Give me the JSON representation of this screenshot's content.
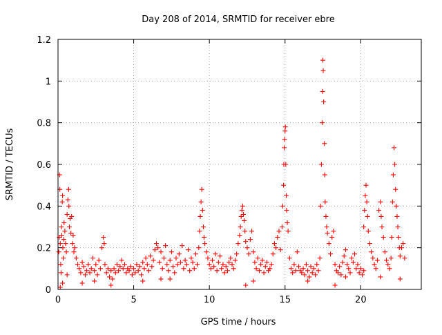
{
  "chart_data": {
    "type": "scatter",
    "title": "Day 208 of 2014, SRMTID for receiver ebre",
    "xlabel": "GPS time / hours",
    "ylabel": "SRMTID / TECUs",
    "xlim": [
      0,
      24
    ],
    "ylim": [
      0,
      1.2
    ],
    "x_ticks": [
      0,
      5,
      10,
      15,
      20
    ],
    "x_tick_labels": [
      "0",
      "5",
      "10",
      "15",
      "20"
    ],
    "y_ticks": [
      0,
      0.2,
      0.4,
      0.6,
      0.8,
      1.0,
      1.2
    ],
    "y_tick_labels": [
      "0",
      "0.2",
      "0.4",
      "0.6",
      "0.8",
      "1",
      "1.2"
    ],
    "grid": true,
    "marker": "+",
    "series": [
      {
        "name": "SRMTID",
        "color": "#ff0000",
        "points": [
          [
            0.05,
            0.18
          ],
          [
            0.08,
            0.25
          ],
          [
            0.1,
            0.55
          ],
          [
            0.12,
            0.48
          ],
          [
            0.15,
            0.22
          ],
          [
            0.18,
            0.12
          ],
          [
            0.2,
            0.08
          ],
          [
            0.22,
            0.3
          ],
          [
            0.25,
            0.26
          ],
          [
            0.28,
            0.42
          ],
          [
            0.3,
            0.45
          ],
          [
            0.32,
            0.2
          ],
          [
            0.35,
            0.15
          ],
          [
            0.38,
            0.24
          ],
          [
            0.4,
            0.32
          ],
          [
            0.45,
            0.28
          ],
          [
            0.5,
            0.22
          ],
          [
            0.55,
            0.18
          ],
          [
            0.6,
            0.36
          ],
          [
            0.65,
            0.43
          ],
          [
            0.7,
            0.48
          ],
          [
            0.72,
            0.4
          ],
          [
            0.75,
            0.3
          ],
          [
            0.8,
            0.34
          ],
          [
            0.85,
            0.27
          ],
          [
            0.9,
            0.35
          ],
          [
            0.95,
            0.22
          ],
          [
            1.0,
            0.26
          ],
          [
            1.05,
            0.18
          ],
          [
            1.1,
            0.2
          ],
          [
            1.2,
            0.15
          ],
          [
            1.3,
            0.12
          ],
          [
            0.3,
            0.03
          ],
          [
            0.15,
            0.01
          ],
          [
            0.6,
            0.07
          ],
          [
            1.4,
            0.1
          ],
          [
            1.5,
            0.08
          ],
          [
            1.6,
            0.13
          ],
          [
            1.7,
            0.11
          ],
          [
            1.8,
            0.07
          ],
          [
            1.9,
            0.09
          ],
          [
            2.0,
            0.12
          ],
          [
            2.1,
            0.08
          ],
          [
            2.2,
            0.1
          ],
          [
            2.3,
            0.15
          ],
          [
            2.4,
            0.09
          ],
          [
            2.5,
            0.12
          ],
          [
            2.6,
            0.07
          ],
          [
            2.7,
            0.14
          ],
          [
            2.8,
            0.1
          ],
          [
            2.9,
            0.2
          ],
          [
            3.0,
            0.25
          ],
          [
            3.05,
            0.22
          ],
          [
            3.1,
            0.12
          ],
          [
            3.2,
            0.08
          ],
          [
            3.3,
            0.1
          ],
          [
            3.4,
            0.06
          ],
          [
            3.5,
            0.09
          ],
          [
            3.6,
            0.05
          ],
          [
            3.7,
            0.1
          ],
          [
            3.8,
            0.08
          ],
          [
            3.9,
            0.12
          ],
          [
            4.0,
            0.09
          ],
          [
            4.1,
            0.11
          ],
          [
            4.2,
            0.14
          ],
          [
            4.3,
            0.1
          ],
          [
            4.4,
            0.12
          ],
          [
            4.5,
            0.08
          ],
          [
            4.6,
            0.1
          ],
          [
            4.7,
            0.09
          ],
          [
            4.8,
            0.11
          ],
          [
            4.9,
            0.07
          ],
          [
            1.6,
            0.03
          ],
          [
            2.4,
            0.04
          ],
          [
            3.5,
            0.02
          ],
          [
            5.0,
            0.1
          ],
          [
            5.1,
            0.08
          ],
          [
            5.2,
            0.12
          ],
          [
            5.3,
            0.09
          ],
          [
            5.4,
            0.11
          ],
          [
            5.5,
            0.07
          ],
          [
            5.6,
            0.13
          ],
          [
            5.7,
            0.1
          ],
          [
            5.8,
            0.15
          ],
          [
            5.9,
            0.12
          ],
          [
            6.0,
            0.09
          ],
          [
            6.1,
            0.16
          ],
          [
            6.2,
            0.11
          ],
          [
            6.3,
            0.14
          ],
          [
            6.4,
            0.19
          ],
          [
            6.5,
            0.22
          ],
          [
            6.6,
            0.2
          ],
          [
            6.7,
            0.13
          ],
          [
            6.8,
            0.18
          ],
          [
            6.9,
            0.1
          ],
          [
            7.0,
            0.15
          ],
          [
            7.1,
            0.21
          ],
          [
            7.2,
            0.12
          ],
          [
            7.3,
            0.09
          ],
          [
            7.4,
            0.14
          ],
          [
            7.5,
            0.18
          ],
          [
            7.6,
            0.11
          ],
          [
            7.7,
            0.08
          ],
          [
            7.8,
            0.15
          ],
          [
            7.9,
            0.12
          ],
          [
            8.0,
            0.17
          ],
          [
            8.1,
            0.13
          ],
          [
            8.2,
            0.21
          ],
          [
            8.3,
            0.1
          ],
          [
            8.4,
            0.14
          ],
          [
            8.5,
            0.12
          ],
          [
            8.6,
            0.19
          ],
          [
            8.7,
            0.09
          ],
          [
            8.8,
            0.15
          ],
          [
            8.9,
            0.13
          ],
          [
            9.0,
            0.1
          ],
          [
            9.1,
            0.17
          ],
          [
            9.2,
            0.12
          ],
          [
            5.6,
            0.04
          ],
          [
            6.8,
            0.05
          ],
          [
            7.4,
            0.05
          ],
          [
            9.3,
            0.2
          ],
          [
            9.35,
            0.28
          ],
          [
            9.4,
            0.35
          ],
          [
            9.45,
            0.42
          ],
          [
            9.5,
            0.48
          ],
          [
            9.55,
            0.38
          ],
          [
            9.6,
            0.3
          ],
          [
            9.65,
            0.25
          ],
          [
            9.7,
            0.22
          ],
          [
            9.8,
            0.18
          ],
          [
            9.9,
            0.15
          ],
          [
            10.0,
            0.12
          ],
          [
            10.1,
            0.1
          ],
          [
            10.2,
            0.14
          ],
          [
            10.3,
            0.11
          ],
          [
            10.4,
            0.17
          ],
          [
            10.5,
            0.09
          ],
          [
            10.6,
            0.13
          ],
          [
            10.7,
            0.16
          ],
          [
            10.8,
            0.1
          ],
          [
            10.9,
            0.12
          ],
          [
            11.0,
            0.08
          ],
          [
            11.1,
            0.11
          ],
          [
            11.2,
            0.09
          ],
          [
            11.3,
            0.13
          ],
          [
            11.4,
            0.15
          ],
          [
            11.5,
            0.12
          ],
          [
            11.6,
            0.1
          ],
          [
            11.7,
            0.14
          ],
          [
            11.8,
            0.17
          ],
          [
            11.9,
            0.22
          ],
          [
            12.0,
            0.26
          ],
          [
            12.05,
            0.3
          ],
          [
            12.1,
            0.35
          ],
          [
            12.15,
            0.38
          ],
          [
            12.2,
            0.4
          ],
          [
            12.25,
            0.36
          ],
          [
            12.3,
            0.33
          ],
          [
            12.35,
            0.28
          ],
          [
            12.4,
            0.23
          ],
          [
            12.5,
            0.2
          ],
          [
            12.6,
            0.17
          ],
          [
            12.7,
            0.24
          ],
          [
            12.8,
            0.28
          ],
          [
            12.9,
            0.18
          ],
          [
            13.0,
            0.13
          ],
          [
            13.1,
            0.1
          ],
          [
            13.2,
            0.15
          ],
          [
            13.3,
            0.09
          ],
          [
            13.4,
            0.12
          ],
          [
            13.5,
            0.14
          ],
          [
            13.6,
            0.08
          ],
          [
            13.7,
            0.11
          ],
          [
            13.8,
            0.13
          ],
          [
            13.9,
            0.09
          ],
          [
            14.0,
            0.1
          ],
          [
            12.4,
            0.02
          ],
          [
            12.9,
            0.04
          ],
          [
            14.1,
            0.12
          ],
          [
            14.2,
            0.17
          ],
          [
            14.3,
            0.22
          ],
          [
            14.4,
            0.2
          ],
          [
            14.5,
            0.25
          ],
          [
            14.6,
            0.28
          ],
          [
            14.7,
            0.19
          ],
          [
            14.8,
            0.3
          ],
          [
            14.85,
            0.4
          ],
          [
            14.9,
            0.5
          ],
          [
            14.92,
            0.6
          ],
          [
            14.95,
            0.68
          ],
          [
            14.97,
            0.72
          ],
          [
            15.0,
            0.76
          ],
          [
            15.02,
            0.78
          ],
          [
            15.05,
            0.6
          ],
          [
            15.08,
            0.45
          ],
          [
            15.1,
            0.38
          ],
          [
            15.15,
            0.32
          ],
          [
            15.2,
            0.28
          ],
          [
            15.3,
            0.15
          ],
          [
            15.4,
            0.1
          ],
          [
            15.5,
            0.08
          ],
          [
            15.6,
            0.12
          ],
          [
            15.7,
            0.09
          ],
          [
            15.8,
            0.18
          ],
          [
            15.9,
            0.11
          ],
          [
            16.0,
            0.09
          ],
          [
            16.1,
            0.08
          ],
          [
            16.2,
            0.1
          ],
          [
            16.3,
            0.07
          ],
          [
            16.4,
            0.12
          ],
          [
            16.5,
            0.09
          ],
          [
            16.6,
            0.06
          ],
          [
            16.7,
            0.11
          ],
          [
            16.8,
            0.08
          ],
          [
            16.9,
            0.1
          ],
          [
            17.0,
            0.07
          ],
          [
            17.1,
            0.12
          ],
          [
            17.2,
            0.09
          ],
          [
            16.5,
            0.04
          ],
          [
            17.3,
            0.15
          ],
          [
            17.35,
            0.4
          ],
          [
            17.4,
            0.6
          ],
          [
            17.45,
            0.8
          ],
          [
            17.48,
            0.95
          ],
          [
            17.5,
            1.1
          ],
          [
            17.52,
            1.05
          ],
          [
            17.55,
            0.9
          ],
          [
            17.6,
            0.7
          ],
          [
            17.62,
            0.55
          ],
          [
            17.65,
            0.42
          ],
          [
            17.7,
            0.35
          ],
          [
            17.75,
            0.3
          ],
          [
            17.8,
            0.27
          ],
          [
            17.9,
            0.22
          ],
          [
            18.0,
            0.17
          ],
          [
            18.1,
            0.25
          ],
          [
            18.2,
            0.28
          ],
          [
            18.3,
            0.12
          ],
          [
            18.4,
            0.09
          ],
          [
            18.5,
            0.08
          ],
          [
            18.6,
            0.11
          ],
          [
            18.7,
            0.07
          ],
          [
            18.8,
            0.13
          ],
          [
            18.9,
            0.16
          ],
          [
            19.0,
            0.19
          ],
          [
            19.1,
            0.12
          ],
          [
            19.2,
            0.1
          ],
          [
            19.3,
            0.08
          ],
          [
            19.4,
            0.15
          ],
          [
            19.5,
            0.13
          ],
          [
            19.6,
            0.17
          ],
          [
            19.7,
            0.1
          ],
          [
            19.8,
            0.12
          ],
          [
            19.9,
            0.08
          ],
          [
            20.0,
            0.1
          ],
          [
            20.1,
            0.07
          ],
          [
            18.3,
            0.02
          ],
          [
            19.0,
            0.06
          ],
          [
            20.2,
            0.3
          ],
          [
            20.25,
            0.38
          ],
          [
            20.3,
            0.45
          ],
          [
            20.35,
            0.5
          ],
          [
            20.4,
            0.42
          ],
          [
            20.45,
            0.35
          ],
          [
            20.5,
            0.28
          ],
          [
            20.6,
            0.22
          ],
          [
            20.7,
            0.18
          ],
          [
            20.8,
            0.15
          ],
          [
            20.9,
            0.12
          ],
          [
            21.0,
            0.1
          ],
          [
            21.1,
            0.14
          ],
          [
            21.2,
            0.38
          ],
          [
            21.3,
            0.42
          ],
          [
            21.35,
            0.35
          ],
          [
            21.4,
            0.3
          ],
          [
            21.5,
            0.25
          ],
          [
            21.6,
            0.18
          ],
          [
            21.7,
            0.14
          ],
          [
            21.8,
            0.12
          ],
          [
            21.9,
            0.1
          ],
          [
            22.0,
            0.15
          ],
          [
            22.05,
            0.25
          ],
          [
            22.1,
            0.42
          ],
          [
            22.15,
            0.55
          ],
          [
            22.2,
            0.68
          ],
          [
            22.25,
            0.6
          ],
          [
            22.3,
            0.48
          ],
          [
            22.35,
            0.4
          ],
          [
            22.4,
            0.35
          ],
          [
            22.45,
            0.3
          ],
          [
            22.5,
            0.25
          ],
          [
            22.55,
            0.2
          ],
          [
            22.6,
            0.16
          ],
          [
            22.7,
            0.2
          ],
          [
            22.8,
            0.22
          ],
          [
            22.9,
            0.15
          ],
          [
            22.6,
            0.05
          ],
          [
            21.3,
            0.06
          ],
          [
            20.2,
            0.09
          ]
        ]
      }
    ]
  }
}
